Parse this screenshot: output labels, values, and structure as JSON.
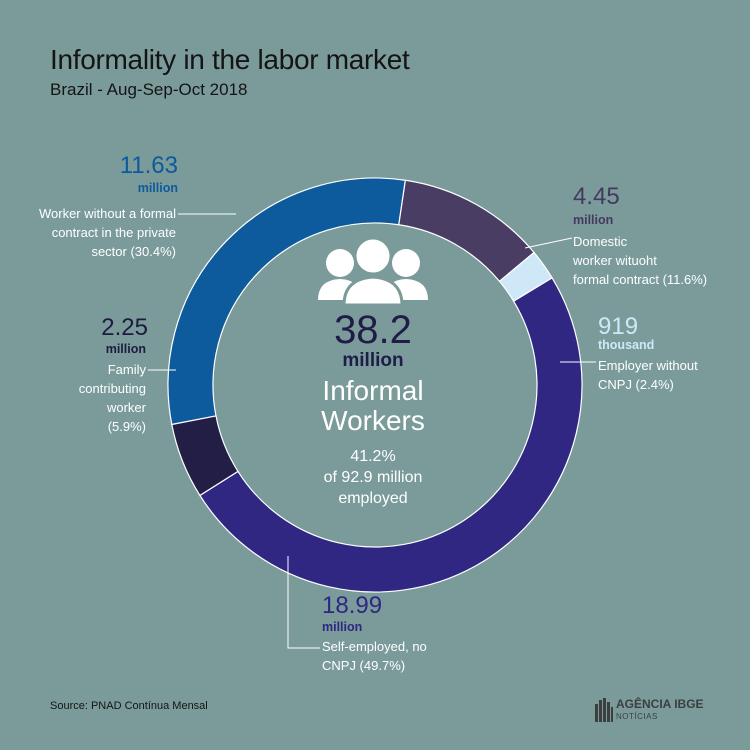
{
  "header": {
    "title": "Informality in the labor market",
    "subtitle": "Brazil - Aug-Sep-Oct  2018"
  },
  "center": {
    "value": "38.2",
    "unit": "million",
    "label_line1": "Informal",
    "label_line2": "Workers",
    "share_line1": "41.2%",
    "share_line2": "of 92.9 million",
    "share_line3": "employed",
    "icon": "people-group-icon"
  },
  "labels": {
    "private": {
      "value": "11.63",
      "unit": "million",
      "desc1": "Worker without a formal",
      "desc2": "contract in the private",
      "desc3": "sector (30.4%)"
    },
    "domestic": {
      "value": "4.45",
      "unit": "million",
      "desc1": "Domestic",
      "desc2": "worker wituoht",
      "desc3": "formal contract  (11.6%)"
    },
    "employer": {
      "value": "919",
      "unit": "thousand",
      "desc1": "Employer without",
      "desc2": "CNPJ  (2.4%)"
    },
    "family": {
      "value": "2.25",
      "unit": "million",
      "desc1": "Family",
      "desc2": "contributing",
      "desc3": "worker",
      "desc4": "(5.9%)"
    },
    "self": {
      "value": "18.99",
      "unit": "million",
      "desc1": "Self-employed, no",
      "desc2": "CNPJ (49.7%)"
    }
  },
  "footer": {
    "source": "Source: PNAD Contínua Mensal",
    "logo_main": "AGÊNCIA IBGE",
    "logo_sub": "NOTÍCIAS"
  },
  "chart_data": {
    "type": "pie",
    "title": "Informality in the labor market",
    "subtitle": "Brazil - Aug-Sep-Oct  2018",
    "total": 38.2,
    "total_unit": "million",
    "series": [
      {
        "name": "Worker without a formal contract in the private sector",
        "value": 11.63,
        "unit": "million",
        "percent": 30.4,
        "color": "#0d5a9c"
      },
      {
        "name": "Domestic worker wituoht formal contract",
        "value": 4.45,
        "unit": "million",
        "percent": 11.6,
        "color": "#4a3d63"
      },
      {
        "name": "Employer without CNPJ",
        "value": 0.919,
        "unit": "million",
        "percent": 2.4,
        "color": "#cfe8f7"
      },
      {
        "name": "Self-employed, no CNPJ",
        "value": 18.99,
        "unit": "million",
        "percent": 49.7,
        "color": "#2f2782"
      },
      {
        "name": "Family contributing worker",
        "value": 2.25,
        "unit": "million",
        "percent": 5.9,
        "color": "#221e45"
      }
    ]
  }
}
